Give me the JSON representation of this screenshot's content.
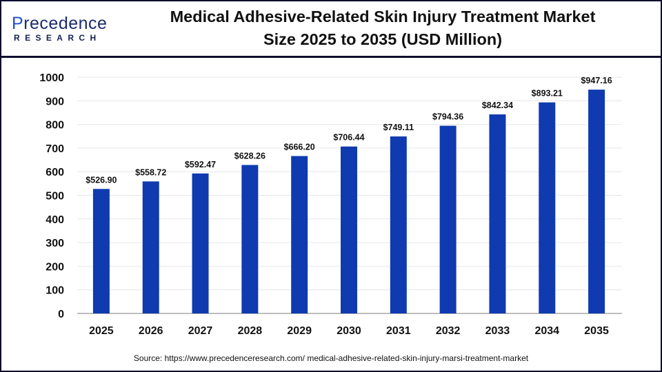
{
  "logo": {
    "line1": "Precedence",
    "line2": "RESEARCH"
  },
  "title_line1": "Medical Adhesive-Related Skin Injury Treatment Market",
  "title_line2": "Size 2025 to 2035 (USD Million)",
  "source": "Source: https://www.precedenceresearch.com/ medical-adhesive-related-skin-injury-marsi-treatment-market",
  "colors": {
    "bar": "#0f3ab0",
    "frame": "#0d0b2e",
    "grid": "#e6e6e6",
    "axis": "#bdbdbd"
  },
  "chart_data": {
    "type": "bar",
    "title": "Medical Adhesive-Related Skin Injury Treatment Market Size 2025 to 2035 (USD Million)",
    "categories": [
      "2025",
      "2026",
      "2027",
      "2028",
      "2029",
      "2030",
      "2031",
      "2032",
      "2033",
      "2034",
      "2035"
    ],
    "values": [
      526.9,
      558.72,
      592.47,
      628.26,
      666.2,
      706.44,
      749.11,
      794.36,
      842.34,
      893.21,
      947.16
    ],
    "data_labels": [
      "$526.90",
      "$558.72",
      "$592.47",
      "$628.26",
      "$666.20",
      "$706.44",
      "$749.11",
      "$794.36",
      "$842.34",
      "$893.21",
      "$947.16"
    ],
    "yticks": [
      0,
      100,
      200,
      300,
      400,
      500,
      600,
      700,
      800,
      900,
      1000
    ],
    "ylim": [
      0,
      1000
    ],
    "grid": true,
    "legend": "none"
  }
}
